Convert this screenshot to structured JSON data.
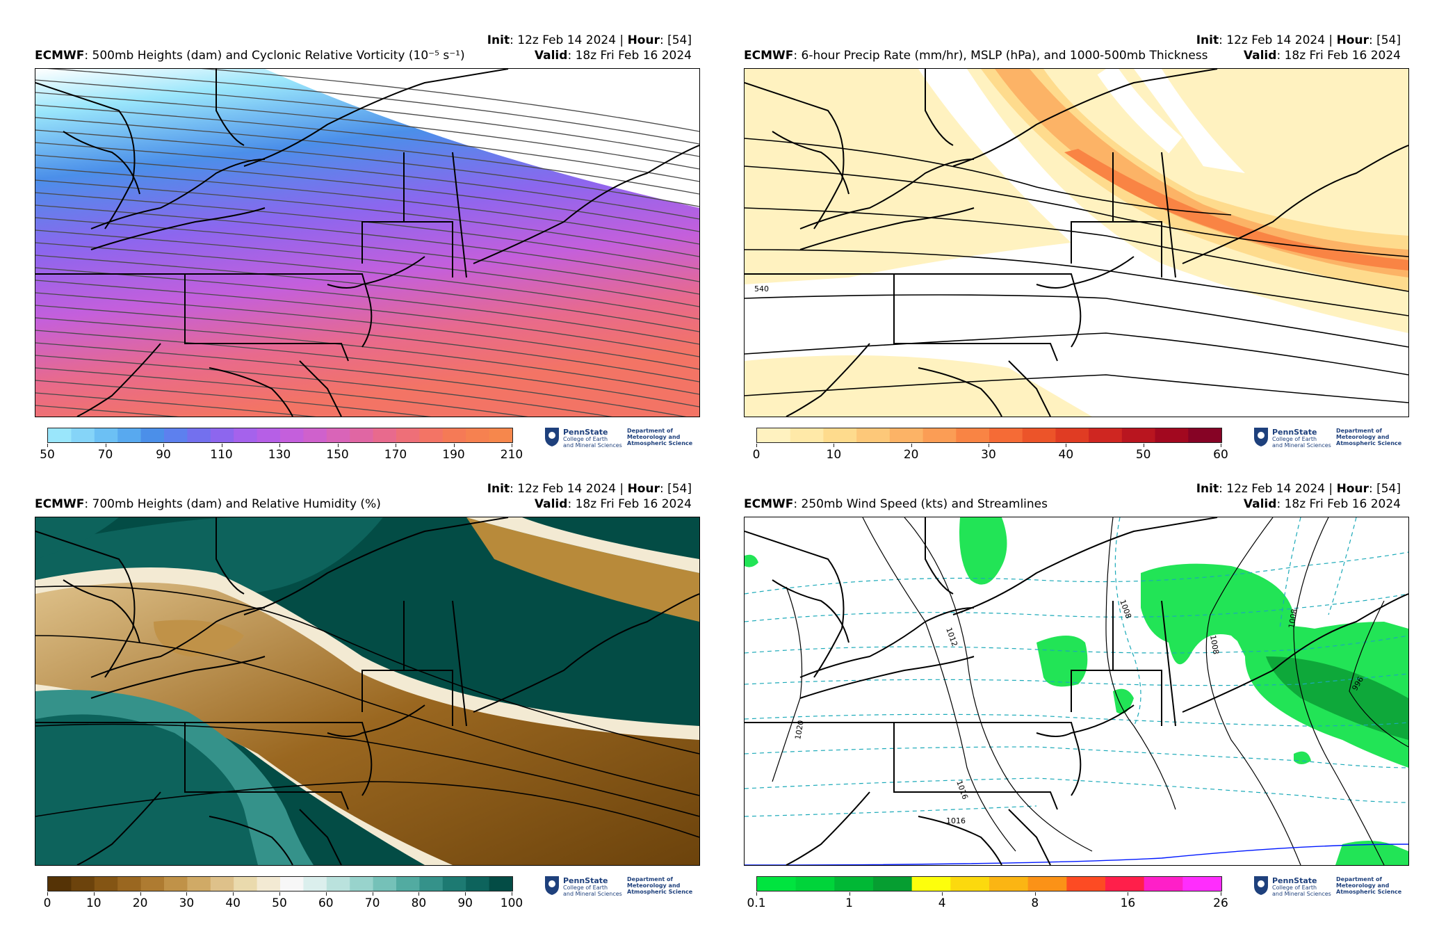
{
  "run": {
    "init_label": "Init",
    "init_value": ": 12z Feb 14 2024 | ",
    "hour_label": "Hour",
    "hour_value": ": [54]",
    "valid_label": "Valid",
    "valid_value": ": 18z Fri Feb 16 2024",
    "model": "ECMWF"
  },
  "panels": [
    {
      "title": ": 500mb Heights (dam) and Cyclonic Relative Vorticity (10⁻⁵ s⁻¹)",
      "colorbar_ticks": [
        "50",
        "70",
        "90",
        "110",
        "130",
        "150",
        "170",
        "190",
        "210"
      ],
      "colorbar_colors": [
        "#9ae6fb",
        "#85d4f8",
        "#6cc0f4",
        "#58a9ef",
        "#4b8fe9",
        "#5d80ee",
        "#7370ee",
        "#8d66ee",
        "#a562ec",
        "#b65fe6",
        "#c45fdc",
        "#cf61cc",
        "#d964b8",
        "#e066a3",
        "#e86a8d",
        "#ee6f78",
        "#f37465",
        "#f57a56",
        "#f68150",
        "#f6874c"
      ]
    },
    {
      "title": ": 6-hour Precip Rate (mm/hr), MSLP (hPa), and 1000-500mb Thickness",
      "colorbar_ticks": [
        "0",
        "10",
        "20",
        "30",
        "40",
        "50",
        "60"
      ],
      "colorbar_colors": [
        "#fff2c0",
        "#ffe9a8",
        "#fedb8d",
        "#fdc879",
        "#fcb366",
        "#fb9d55",
        "#f98444",
        "#f56b36",
        "#ec5429",
        "#e03c23",
        "#cf2621",
        "#b9151f",
        "#a2081f",
        "#860325"
      ],
      "contour_label": "540"
    },
    {
      "title": ": 700mb Heights (dam) and Relative Humidity (%)",
      "colorbar_ticks": [
        "0",
        "10",
        "20",
        "30",
        "40",
        "50",
        "60",
        "70",
        "80",
        "90",
        "100"
      ],
      "colorbar_colors": [
        "#553306",
        "#6c430c",
        "#845514",
        "#9a6720",
        "#ae7b31",
        "#c09248",
        "#d0aa66",
        "#dec18a",
        "#eadaad",
        "#f3ead3",
        "#f7f7f7",
        "#dbefed",
        "#bae2dd",
        "#98d3cc",
        "#75c1b8",
        "#52aba1",
        "#35928a",
        "#1d7a72",
        "#0d635c",
        "#034c45"
      ]
    },
    {
      "title": ": 250mb Wind Speed (kts) and Streamlines",
      "colorbar_ticks": [
        "0.1",
        "1",
        "4",
        "8",
        "16",
        "26"
      ],
      "colorbar_colors": [
        "#00e43f",
        "#00d43a",
        "#01b835",
        "#069e31",
        "#fdfe0c",
        "#fcd90e",
        "#fbb513",
        "#fb9217",
        "#fd4b23",
        "#ff1f4a",
        "#fe1fc8",
        "#ff2dfd"
      ],
      "contour_labels": [
        "1012",
        "1008",
        "1008",
        "1008",
        "996",
        "1020",
        "1016",
        "1016"
      ]
    }
  ],
  "logo": {
    "name": "PennState",
    "college": "College of Earth\nand Mineral Sciences",
    "dept_line1": "Department of",
    "dept_line2": "Meteorology and",
    "dept_line3": "Atmospheric Science"
  }
}
